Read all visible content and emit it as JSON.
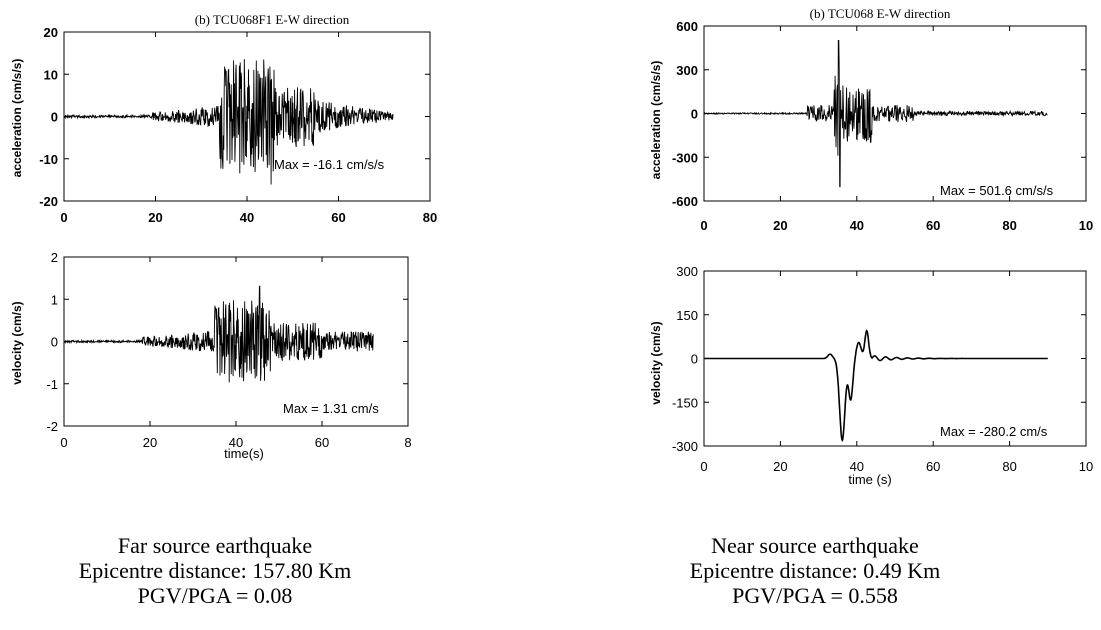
{
  "chart_data": [
    {
      "type": "line",
      "id": "far_acc",
      "title": "(b) TCU068F1 E-W direction",
      "xlabel": "",
      "ylabel": "acceleration (cm/s/s)",
      "xlim": [
        0,
        80
      ],
      "ylim": [
        -20,
        20
      ],
      "xticks": [
        "0",
        "20",
        "40",
        "60",
        "80"
      ],
      "yticks": [
        "20",
        "10",
        "0",
        "-10",
        "-20"
      ],
      "annotation": "Max = -16.1 cm/s/s",
      "peak": -16.1,
      "record_end": 72,
      "color": "#000000"
    },
    {
      "type": "line",
      "id": "far_vel",
      "title": "",
      "xlabel": "time(s)",
      "ylabel": "velocity (cm/s)",
      "xlim": [
        0,
        80
      ],
      "ylim": [
        -2,
        2
      ],
      "xticks": [
        "0",
        "20",
        "40",
        "60",
        "8"
      ],
      "yticks": [
        "2",
        "1",
        "0",
        "-1",
        "-2"
      ],
      "annotation": "Max = 1.31 cm/s",
      "peak": 1.31,
      "record_end": 72,
      "color": "#000000"
    },
    {
      "type": "line",
      "id": "near_acc",
      "title": "(b) TCU068 E-W direction",
      "xlabel": "",
      "ylabel": "acceleration (cm/s/s)",
      "xlim": [
        0,
        100
      ],
      "ylim": [
        -600,
        600
      ],
      "xticks": [
        "0",
        "20",
        "40",
        "60",
        "80",
        "10"
      ],
      "yticks": [
        "600",
        "300",
        "0",
        "-300",
        "-600"
      ],
      "annotation": "Max = 501.6 cm/s/s",
      "peak": 501.6,
      "record_end": 90,
      "color": "#000000"
    },
    {
      "type": "line",
      "id": "near_vel",
      "title": "",
      "xlabel": "time (s)",
      "ylabel": "velocity (cm/s)",
      "xlim": [
        0,
        100
      ],
      "ylim": [
        -300,
        300
      ],
      "xticks": [
        "0",
        "20",
        "40",
        "60",
        "80",
        "10"
      ],
      "yticks": [
        "300",
        "150",
        "0",
        "-150",
        "-300"
      ],
      "annotation": "Max = -280.2 cm/s",
      "peak": -280.2,
      "record_end": 90,
      "color": "#000000"
    }
  ],
  "captions": {
    "far": {
      "line1": "Far source earthquake",
      "line2": "Epicentre distance: 157.80 Km",
      "line3": "PGV/PGA = 0.08"
    },
    "near": {
      "line1": "Near source earthquake",
      "line2": "Epicentre distance: 0.49 Km",
      "line3": "PGV/PGA = 0.558"
    }
  }
}
